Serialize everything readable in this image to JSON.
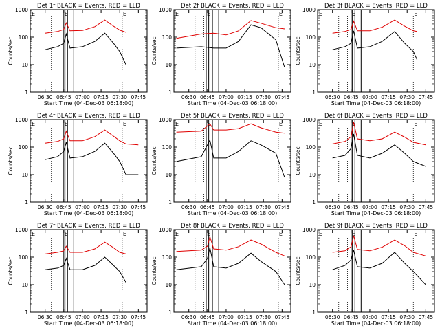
{
  "figure": {
    "xlabel": "Start Time (04-Dec-03 06:18:00)",
    "ylabel": "Counts/sec",
    "x_tick_labels": [
      "06:30",
      "06:45",
      "07:00",
      "07:15",
      "07:30",
      "07:45"
    ],
    "y_tick_labels": [
      "1",
      "10",
      "100",
      "1000"
    ],
    "colors": {
      "events": "#000000",
      "lld": "#e00000",
      "axes": "#000000"
    }
  },
  "chart_data": [
    {
      "type": "line",
      "title": "Det 1f BLACK = Events, RED = LLD",
      "ylabel": "Counts/sec",
      "xlabel": "Start Time (04-Dec-03 06:18:00)",
      "y_scale": "log",
      "ylim": [
        1,
        1000
      ],
      "xlim": [
        "06:18",
        "07:52"
      ],
      "markers": {
        "labels": [
          "E",
          "E",
          "E"
        ],
        "dotted_x": [
          "06:35",
          "06:42",
          "07:32"
        ],
        "solid_x": [
          "06:45",
          "06:46",
          "06:48",
          "06:53"
        ]
      },
      "x": [
        "06:30",
        "06:40",
        "06:45",
        "06:47",
        "06:50",
        "07:00",
        "07:10",
        "07:18",
        "07:25",
        "07:30",
        "07:35"
      ],
      "series": [
        {
          "name": "LLD",
          "color": "#e00000",
          "values": [
            140,
            160,
            190,
            330,
            170,
            175,
            240,
            420,
            250,
            180,
            150
          ]
        },
        {
          "name": "Events",
          "color": "#000000",
          "values": [
            35,
            45,
            60,
            130,
            40,
            45,
            70,
            140,
            60,
            30,
            10
          ]
        }
      ]
    },
    {
      "type": "line",
      "title": "Det 2f BLACK = Events, RED = LLD",
      "ylabel": "Counts/sec",
      "xlabel": "Start Time (04-Dec-03 06:18:00)",
      "y_scale": "log",
      "ylim": [
        1,
        1000
      ],
      "xlim": [
        "06:18",
        "07:52"
      ],
      "markers": {
        "labels": [
          "E",
          "E",
          "E"
        ],
        "dotted_x": [
          "06:35",
          "06:42",
          "07:42"
        ],
        "solid_x": [
          "06:44",
          "06:46",
          "06:49",
          "06:54"
        ]
      },
      "x": [
        "06:20",
        "06:40",
        "06:50",
        "07:00",
        "07:10",
        "07:20",
        "07:28",
        "07:40",
        "07:47"
      ],
      "series": [
        {
          "name": "LLD",
          "color": "#e00000",
          "values": [
            90,
            130,
            140,
            120,
            170,
            400,
            320,
            220,
            200
          ]
        },
        {
          "name": "Events",
          "color": "#000000",
          "values": [
            40,
            45,
            40,
            40,
            70,
            280,
            220,
            80,
            8
          ]
        }
      ]
    },
    {
      "type": "line",
      "title": "Det 3f BLACK = Events, RED = LLD",
      "ylabel": "Counts/sec",
      "xlabel": "Start Time (04-Dec-03 06:18:00)",
      "y_scale": "log",
      "ylim": [
        1,
        1000
      ],
      "xlim": [
        "06:18",
        "07:52"
      ],
      "markers": {
        "labels": [
          "E",
          "E",
          "E"
        ],
        "dotted_x": [
          "06:35",
          "06:42",
          "07:35"
        ],
        "solid_x": [
          "06:45",
          "06:46",
          "06:48",
          "06:53"
        ]
      },
      "x": [
        "06:30",
        "06:40",
        "06:45",
        "06:47",
        "06:50",
        "07:00",
        "07:10",
        "07:20",
        "07:28",
        "07:35",
        "07:38"
      ],
      "series": [
        {
          "name": "LLD",
          "color": "#e00000",
          "values": [
            140,
            160,
            190,
            380,
            170,
            170,
            230,
            420,
            250,
            170,
            160
          ]
        },
        {
          "name": "Events",
          "color": "#000000",
          "values": [
            35,
            45,
            60,
            170,
            40,
            45,
            70,
            160,
            60,
            30,
            15
          ]
        }
      ]
    },
    {
      "type": "line",
      "title": "Det 4f BLACK = Events, RED = LLD",
      "ylabel": "Counts/sec",
      "xlabel": "Start Time (04-Dec-03 06:18:00)",
      "y_scale": "log",
      "ylim": [
        1,
        1000
      ],
      "xlim": [
        "06:18",
        "07:52"
      ],
      "markers": {
        "labels": [
          "E",
          "E",
          "E"
        ],
        "dotted_x": [
          "06:35",
          "06:42",
          "07:32"
        ],
        "solid_x": [
          "06:45",
          "06:46",
          "06:48",
          "06:53"
        ]
      },
      "x": [
        "06:30",
        "06:40",
        "06:45",
        "06:47",
        "06:50",
        "07:00",
        "07:10",
        "07:18",
        "07:25",
        "07:30",
        "07:35",
        "07:45"
      ],
      "series": [
        {
          "name": "LLD",
          "color": "#e00000",
          "values": [
            140,
            160,
            200,
            380,
            170,
            170,
            240,
            420,
            250,
            170,
            130,
            120
          ]
        },
        {
          "name": "Events",
          "color": "#000000",
          "values": [
            35,
            45,
            70,
            150,
            40,
            45,
            70,
            140,
            60,
            30,
            10,
            10
          ]
        }
      ]
    },
    {
      "type": "line",
      "title": "Det 5f BLACK = Events, RED = LLD",
      "ylabel": "Counts/sec",
      "xlabel": "Start Time (04-Dec-03 06:18:00)",
      "y_scale": "log",
      "ylim": [
        1,
        1000
      ],
      "xlim": [
        "06:18",
        "07:52"
      ],
      "markers": {
        "labels": [
          "E",
          "E",
          "E"
        ],
        "dotted_x": [
          "06:35",
          "06:42",
          "07:42"
        ],
        "solid_x": [
          "06:44",
          "06:46",
          "06:49",
          "06:54"
        ]
      },
      "x": [
        "06:20",
        "06:40",
        "06:47",
        "06:50",
        "07:00",
        "07:10",
        "07:20",
        "07:28",
        "07:40",
        "07:47"
      ],
      "series": [
        {
          "name": "LLD",
          "color": "#e00000",
          "values": [
            350,
            380,
            700,
            420,
            420,
            470,
            700,
            500,
            350,
            320
          ]
        },
        {
          "name": "Events",
          "color": "#000000",
          "values": [
            30,
            45,
            180,
            40,
            40,
            70,
            170,
            120,
            60,
            8
          ]
        }
      ]
    },
    {
      "type": "line",
      "title": "Det 6f BLACK = Events, RED = LLD",
      "ylabel": "Counts/sec",
      "xlabel": "Start Time (04-Dec-03 06:18:00)",
      "y_scale": "log",
      "ylim": [
        1,
        1000
      ],
      "xlim": [
        "06:18",
        "07:52"
      ],
      "markers": {
        "labels": [
          "E",
          "E",
          "E"
        ],
        "dotted_x": [
          "06:35",
          "06:42",
          "07:35"
        ],
        "solid_x": [
          "06:45",
          "06:46",
          "06:48",
          "06:53"
        ]
      },
      "x": [
        "06:30",
        "06:40",
        "06:45",
        "06:47",
        "06:50",
        "07:00",
        "07:10",
        "07:20",
        "07:28",
        "07:35",
        "07:45"
      ],
      "series": [
        {
          "name": "LLD",
          "color": "#e00000",
          "values": [
            130,
            160,
            240,
            800,
            200,
            170,
            200,
            350,
            230,
            150,
            120
          ]
        },
        {
          "name": "Events",
          "color": "#000000",
          "values": [
            40,
            50,
            90,
            300,
            50,
            40,
            60,
            120,
            60,
            30,
            20
          ]
        }
      ]
    },
    {
      "type": "line",
      "title": "Det 7f BLACK = Events, RED = LLD",
      "ylabel": "Counts/sec",
      "xlabel": "Start Time (04-Dec-03 06:18:00)",
      "y_scale": "log",
      "ylim": [
        1,
        1000
      ],
      "xlim": [
        "06:18",
        "07:52"
      ],
      "markers": {
        "labels": [
          "E",
          "E",
          "E"
        ],
        "dotted_x": [
          "06:35",
          "06:42",
          "07:32"
        ],
        "solid_x": [
          "06:45",
          "06:46",
          "06:48",
          "06:53"
        ]
      },
      "x": [
        "06:30",
        "06:40",
        "06:45",
        "06:47",
        "06:50",
        "07:00",
        "07:10",
        "07:18",
        "07:25",
        "07:30",
        "07:35"
      ],
      "series": [
        {
          "name": "LLD",
          "color": "#e00000",
          "values": [
            130,
            150,
            170,
            250,
            150,
            150,
            200,
            350,
            220,
            150,
            130
          ]
        },
        {
          "name": "Events",
          "color": "#000000",
          "values": [
            35,
            40,
            50,
            90,
            35,
            35,
            50,
            100,
            50,
            30,
            12
          ]
        }
      ]
    },
    {
      "type": "line",
      "title": "Det 8f BLACK = Events, RED = LLD",
      "ylabel": "Counts/sec",
      "xlabel": "Start Time (04-Dec-03 06:18:00)",
      "y_scale": "log",
      "ylim": [
        1,
        1000
      ],
      "xlim": [
        "06:18",
        "07:52"
      ],
      "markers": {
        "labels": [
          "E",
          "E",
          "E"
        ],
        "dotted_x": [
          "06:35",
          "06:42",
          "07:42"
        ],
        "solid_x": [
          "06:44",
          "06:46",
          "06:49",
          "06:54"
        ]
      },
      "x": [
        "06:20",
        "06:40",
        "06:45",
        "06:47",
        "06:50",
        "07:00",
        "07:10",
        "07:20",
        "07:28",
        "07:40",
        "07:47"
      ],
      "series": [
        {
          "name": "LLD",
          "color": "#e00000",
          "values": [
            160,
            180,
            250,
            550,
            200,
            180,
            240,
            420,
            300,
            150,
            110
          ]
        },
        {
          "name": "Events",
          "color": "#000000",
          "values": [
            35,
            45,
            90,
            220,
            45,
            40,
            60,
            140,
            70,
            30,
            10
          ]
        }
      ]
    },
    {
      "type": "line",
      "title": "Det 9f BLACK = Events, RED = LLD",
      "ylabel": "Counts/sec",
      "xlabel": "Start Time (04-Dec-03 06:18:00)",
      "y_scale": "log",
      "ylim": [
        1,
        1000
      ],
      "xlim": [
        "06:18",
        "07:52"
      ],
      "markers": {
        "labels": [
          "E",
          "E",
          "E"
        ],
        "dotted_x": [
          "06:35",
          "06:42",
          "07:35"
        ],
        "solid_x": [
          "06:45",
          "06:46",
          "06:48",
          "06:53"
        ]
      },
      "x": [
        "06:30",
        "06:40",
        "06:45",
        "06:47",
        "06:50",
        "07:00",
        "07:10",
        "07:20",
        "07:28",
        "07:35",
        "07:45"
      ],
      "series": [
        {
          "name": "LLD",
          "color": "#e00000",
          "values": [
            150,
            170,
            240,
            600,
            190,
            170,
            230,
            420,
            260,
            150,
            110
          ]
        },
        {
          "name": "Events",
          "color": "#000000",
          "values": [
            35,
            50,
            80,
            180,
            45,
            40,
            60,
            150,
            60,
            30,
            10
          ]
        }
      ]
    }
  ]
}
